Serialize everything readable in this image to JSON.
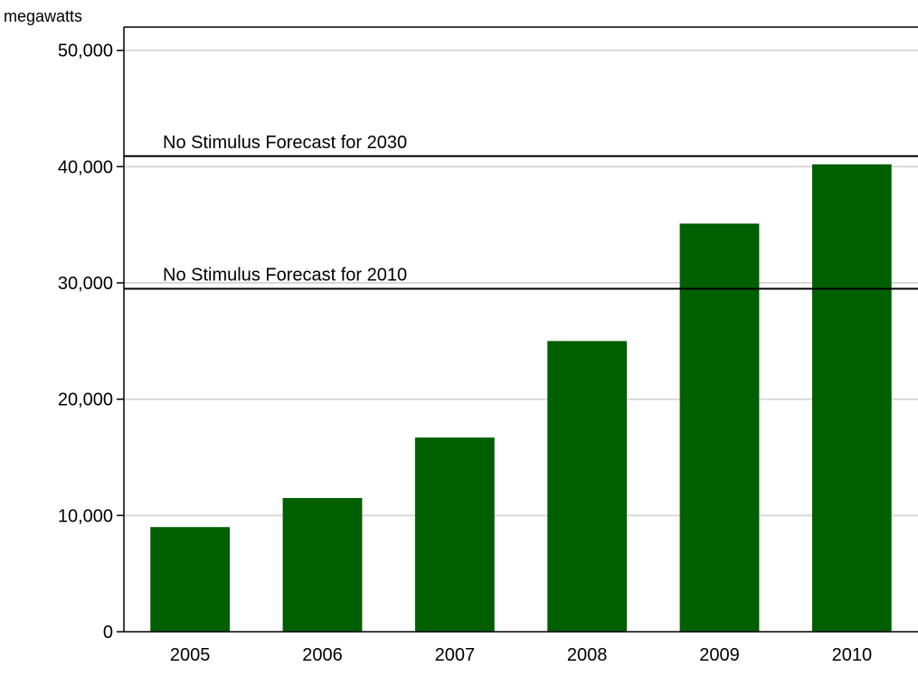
{
  "chart_data": {
    "type": "bar",
    "title": "",
    "xlabel": "",
    "ylabel": "megawatts",
    "ylim": [
      0,
      52000
    ],
    "yticks": [
      0,
      10000,
      20000,
      30000,
      40000,
      50000
    ],
    "ytick_labels": [
      "0",
      "10,000",
      "20,000",
      "30,000",
      "40,000",
      "50,000"
    ],
    "grid": true,
    "categories": [
      "2005",
      "2006",
      "2007",
      "2008",
      "2009",
      "2010"
    ],
    "values": [
      9000,
      11500,
      16700,
      25000,
      35100,
      40200
    ],
    "bar_color": "#005f00",
    "grid_color": "#d9d9d9",
    "reference_lines": [
      {
        "label": "No Stimulus Forecast for 2030",
        "value": 40900
      },
      {
        "label": "No Stimulus Forecast for 2010",
        "value": 29500
      }
    ]
  }
}
